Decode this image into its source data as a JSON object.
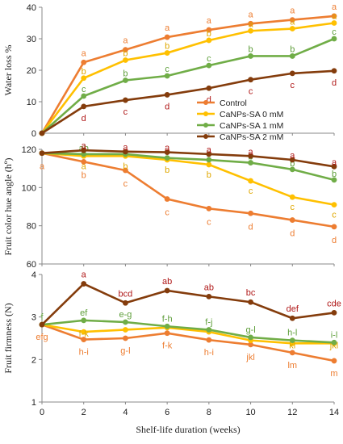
{
  "colors": {
    "Control": "#ED7D31",
    "CaNPs-SA 0 mM": "#FFC000",
    "CaNPs-SA 1 mM": "#70AD47",
    "CaNPs-SA 2 mM": "#843C0C",
    "axis": "#888888",
    "text": "#222222"
  },
  "xlabel": "Shelf-life duration (weeks)",
  "chart_data": [
    {
      "type": "line",
      "ylabel": "Water loss %",
      "ylim": [
        0,
        40
      ],
      "yticks": [
        0,
        10,
        20,
        30,
        40
      ],
      "xlim": [
        0,
        14
      ],
      "grid": false,
      "legend": "lower-right",
      "legend_entries": [
        "Control",
        "CaNPs-SA 0 mM",
        "CaNPs-SA 1 mM",
        "CaNPs-SA 2 mM"
      ],
      "x": [
        0,
        2,
        4,
        6,
        8,
        10,
        12,
        14
      ],
      "series": [
        {
          "name": "Control",
          "values": [
            0,
            22.5,
            26.5,
            30.5,
            32.8,
            34.8,
            36,
            37.2
          ],
          "letters": [
            "",
            "a",
            "a",
            "a",
            "a",
            "a",
            "a",
            "a"
          ]
        },
        {
          "name": "CaNPs-SA 0 mM",
          "values": [
            0,
            17.5,
            23.2,
            25.5,
            29.5,
            32.5,
            33.2,
            35
          ],
          "letters": [
            "",
            "b",
            "b",
            "b",
            "b",
            "a",
            "a",
            "a"
          ]
        },
        {
          "name": "CaNPs-SA 1 mM",
          "values": [
            0,
            11.8,
            16.8,
            18.2,
            21.5,
            24.5,
            24.5,
            30
          ],
          "letters": [
            "",
            "c",
            "b",
            "c",
            "c",
            "b",
            "b",
            "c"
          ]
        },
        {
          "name": "CaNPs-SA 2 mM",
          "values": [
            0,
            8.5,
            10.5,
            12.2,
            14.3,
            17,
            19,
            19.8
          ],
          "letters": [
            "",
            "d",
            "c",
            "d",
            "d",
            "c",
            "c",
            "d"
          ]
        }
      ]
    },
    {
      "type": "line",
      "ylabel": "Fruit color hue angle (hº)",
      "ylim": [
        60,
        120
      ],
      "yticks": [
        60,
        80,
        100,
        120
      ],
      "xlim": [
        0,
        14
      ],
      "grid": false,
      "x": [
        0,
        2,
        4,
        6,
        8,
        10,
        12,
        14
      ],
      "series": [
        {
          "name": "Control",
          "values": [
            118,
            113.5,
            109,
            94,
            89,
            86.5,
            83,
            79.5
          ],
          "letters": [
            "a",
            "b",
            "c",
            "c",
            "c",
            "d",
            "d",
            "d"
          ]
        },
        {
          "name": "CaNPs-SA 0 mM",
          "values": [
            118,
            116.5,
            116.5,
            114.5,
            112,
            103.5,
            95,
            91
          ],
          "letters": [
            "",
            "a",
            "b",
            "b",
            "b",
            "c",
            "c",
            "c"
          ]
        },
        {
          "name": "CaNPs-SA 1 mM",
          "values": [
            118,
            117.5,
            117.5,
            115.5,
            114.5,
            113,
            109.5,
            104
          ],
          "letters": [
            "",
            "ab",
            "",
            "",
            "b",
            "b",
            "b",
            "b"
          ]
        },
        {
          "name": "CaNPs-SA 2 mM",
          "values": [
            118,
            119.5,
            118.8,
            118.5,
            117.5,
            116.5,
            114.5,
            111
          ],
          "letters": [
            "",
            "a",
            "a",
            "a",
            "a",
            "a",
            "a",
            "a"
          ]
        }
      ]
    },
    {
      "type": "line",
      "ylabel": "Fruit firmness (N)",
      "ylim": [
        1,
        4
      ],
      "yticks": [
        1,
        2,
        3,
        4
      ],
      "xlim": [
        0,
        14
      ],
      "xticks": [
        0,
        2,
        4,
        6,
        8,
        10,
        12,
        14
      ],
      "grid": false,
      "x": [
        0,
        2,
        4,
        6,
        8,
        10,
        12,
        14
      ],
      "series": [
        {
          "name": "Control",
          "values": [
            2.82,
            2.47,
            2.5,
            2.62,
            2.46,
            2.35,
            2.16,
            1.97
          ],
          "letters": [
            "efg",
            "h-i",
            "g-l",
            "f-k",
            "h-i",
            "jkl",
            "lm",
            "m"
          ]
        },
        {
          "name": "CaNPs-SA 0 mM",
          "values": [
            2.82,
            2.65,
            2.7,
            2.75,
            2.65,
            2.45,
            2.38,
            2.38
          ],
          "letters": [
            "",
            "f-k",
            "",
            "",
            "",
            "",
            "kl",
            "jkl"
          ]
        },
        {
          "name": "CaNPs-SA 1 mM",
          "values": [
            2.82,
            2.92,
            2.88,
            2.78,
            2.7,
            2.52,
            2.45,
            2.4
          ],
          "letters": [
            "f",
            "ef",
            "e-g",
            "f-h",
            "f-j",
            "g-l",
            "h-l",
            "i-l"
          ]
        },
        {
          "name": "CaNPs-SA 2 mM",
          "values": [
            2.82,
            3.78,
            3.33,
            3.62,
            3.48,
            3.35,
            2.97,
            3.1
          ],
          "letters": [
            "",
            "a",
            "bcd",
            "ab",
            "ab",
            "bc",
            "def",
            "cde"
          ]
        }
      ]
    }
  ]
}
